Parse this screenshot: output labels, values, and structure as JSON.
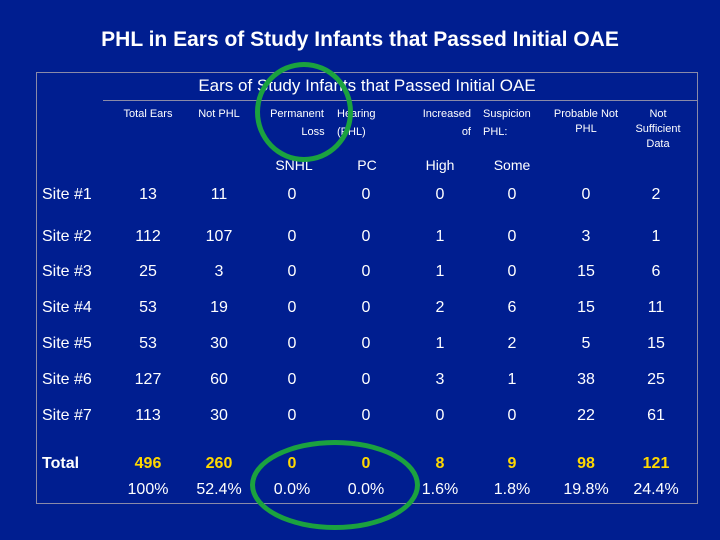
{
  "slide": {
    "title": "PHL in Ears of Study Infants that Passed Initial OAE"
  },
  "table": {
    "caption": "Ears of Study Infants that Passed Initial OAE",
    "headers": {
      "total_ears": "Total Ears",
      "not_phl": "Not PHL",
      "permanent": "Permanent",
      "loss": "Loss",
      "hearing": "Hearing",
      "phl": "(PHL)",
      "increased": "Increased",
      "of": "of",
      "suspicion": "Suspicion",
      "phl_colon": "PHL:",
      "probable": "Probable Not PHL",
      "not_sufficient": "Not Sufficient Data"
    },
    "subheaders": {
      "snhl": "SNHL",
      "pc": "PC",
      "high": "High",
      "some": "Some"
    },
    "rows": [
      {
        "site": "Site #1",
        "values": [
          "13",
          "11",
          "0",
          "0",
          "0",
          "0",
          "0",
          "2"
        ]
      },
      {
        "site": "Site #2",
        "values": [
          "112",
          "107",
          "0",
          "0",
          "1",
          "0",
          "3",
          "1"
        ]
      },
      {
        "site": "Site #3",
        "values": [
          "25",
          "3",
          "0",
          "0",
          "1",
          "0",
          "15",
          "6"
        ]
      },
      {
        "site": "Site #4",
        "values": [
          "53",
          "19",
          "0",
          "0",
          "2",
          "6",
          "15",
          "11"
        ]
      },
      {
        "site": "Site #5",
        "values": [
          "53",
          "30",
          "0",
          "0",
          "1",
          "2",
          "5",
          "15"
        ]
      },
      {
        "site": "Site #6",
        "values": [
          "127",
          "60",
          "0",
          "0",
          "3",
          "1",
          "38",
          "25"
        ]
      },
      {
        "site": "Site #7",
        "values": [
          "113",
          "30",
          "0",
          "0",
          "0",
          "0",
          "22",
          "61"
        ]
      }
    ],
    "total": {
      "label": "Total",
      "values": [
        "496",
        "260",
        "0",
        "0",
        "8",
        "9",
        "98",
        "121"
      ],
      "percents": [
        "100%",
        "52.4%",
        "0.0%",
        "0.0%",
        "1.6%",
        "1.8%",
        "19.8%",
        "24.4%"
      ]
    }
  },
  "colors": {
    "background": "#001e90",
    "text": "#ffffff",
    "total_values": "#ffd800",
    "highlight_oval": "#1ba23f"
  }
}
